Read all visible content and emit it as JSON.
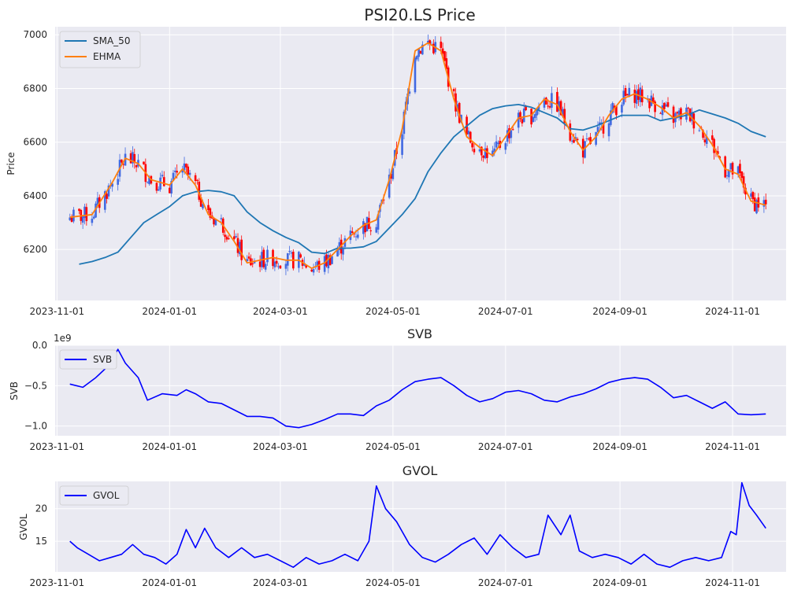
{
  "figure": {
    "background": "#ffffff",
    "axes_background": "#eaeaf2",
    "grid_color": "#ffffff"
  },
  "chart_data": [
    {
      "id": "price",
      "type": "candlestick",
      "title": "PSI20.LS Price",
      "xlabel": "",
      "ylabel": "Price",
      "ylim": [
        6010,
        7030
      ],
      "xlim": [
        "2023-10-31",
        "2024-11-30"
      ],
      "y_ticks": [
        "6200",
        "6400",
        "6600",
        "6800",
        "7000"
      ],
      "x_ticks": [
        "2023-11-01",
        "2024-01-01",
        "2024-03-01",
        "2024-05-01",
        "2024-07-01",
        "2024-09-01",
        "2024-11-01"
      ],
      "legend": {
        "position": "upper left",
        "entries": [
          "SMA_50",
          "EHMA"
        ]
      },
      "colors": {
        "SMA_50": "#1f77b4",
        "EHMA": "#ff7f0e",
        "up": "#4169e1",
        "down": "#ff0000"
      },
      "series": [
        {
          "name": "SMA_50",
          "x": [
            "2023-11-13",
            "2023-11-20",
            "2023-11-27",
            "2023-12-04",
            "2023-12-11",
            "2023-12-18",
            "2023-12-25",
            "2024-01-01",
            "2024-01-08",
            "2024-01-15",
            "2024-01-22",
            "2024-01-29",
            "2024-02-05",
            "2024-02-12",
            "2024-02-19",
            "2024-02-26",
            "2024-03-04",
            "2024-03-11",
            "2024-03-18",
            "2024-03-25",
            "2024-04-01",
            "2024-04-08",
            "2024-04-15",
            "2024-04-22",
            "2024-04-29",
            "2024-05-06",
            "2024-05-13",
            "2024-05-20",
            "2024-05-27",
            "2024-06-03",
            "2024-06-10",
            "2024-06-17",
            "2024-06-24",
            "2024-07-01",
            "2024-07-08",
            "2024-07-15",
            "2024-07-22",
            "2024-07-29",
            "2024-08-05",
            "2024-08-12",
            "2024-08-19",
            "2024-08-26",
            "2024-09-02",
            "2024-09-09",
            "2024-09-16",
            "2024-09-23",
            "2024-09-30",
            "2024-10-07",
            "2024-10-14",
            "2024-10-21",
            "2024-10-28",
            "2024-11-04",
            "2024-11-11",
            "2024-11-19"
          ],
          "values": [
            6145,
            6155,
            6170,
            6190,
            6245,
            6300,
            6330,
            6360,
            6400,
            6415,
            6420,
            6415,
            6400,
            6340,
            6300,
            6270,
            6245,
            6225,
            6190,
            6185,
            6205,
            6205,
            6210,
            6230,
            6280,
            6330,
            6390,
            6490,
            6560,
            6620,
            6660,
            6700,
            6725,
            6735,
            6740,
            6730,
            6710,
            6690,
            6650,
            6645,
            6660,
            6680,
            6700,
            6700,
            6700,
            6680,
            6690,
            6700,
            6720,
            6705,
            6690,
            6670,
            6640,
            6620
          ]
        },
        {
          "name": "EHMA",
          "x": [
            "2023-11-08",
            "2023-11-20",
            "2023-12-01",
            "2023-12-08",
            "2023-12-15",
            "2023-12-22",
            "2024-01-01",
            "2024-01-08",
            "2024-01-15",
            "2024-01-22",
            "2024-01-29",
            "2024-02-05",
            "2024-02-12",
            "2024-02-19",
            "2024-02-26",
            "2024-03-04",
            "2024-03-11",
            "2024-03-18",
            "2024-03-25",
            "2024-04-01",
            "2024-04-08",
            "2024-04-15",
            "2024-04-22",
            "2024-04-29",
            "2024-05-06",
            "2024-05-13",
            "2024-05-20",
            "2024-05-27",
            "2024-06-03",
            "2024-06-10",
            "2024-06-17",
            "2024-06-24",
            "2024-07-01",
            "2024-07-08",
            "2024-07-15",
            "2024-07-22",
            "2024-07-29",
            "2024-08-05",
            "2024-08-12",
            "2024-08-19",
            "2024-08-26",
            "2024-09-02",
            "2024-09-09",
            "2024-09-16",
            "2024-09-23",
            "2024-09-30",
            "2024-10-07",
            "2024-10-14",
            "2024-10-21",
            "2024-10-28",
            "2024-11-04",
            "2024-11-11",
            "2024-11-19"
          ],
          "values": [
            6320,
            6330,
            6450,
            6540,
            6520,
            6460,
            6440,
            6500,
            6440,
            6330,
            6300,
            6230,
            6150,
            6160,
            6170,
            6160,
            6160,
            6130,
            6150,
            6200,
            6250,
            6290,
            6310,
            6460,
            6650,
            6940,
            6970,
            6940,
            6760,
            6620,
            6580,
            6550,
            6620,
            6690,
            6700,
            6760,
            6740,
            6640,
            6570,
            6620,
            6700,
            6760,
            6780,
            6760,
            6730,
            6690,
            6710,
            6660,
            6590,
            6500,
            6480,
            6380,
            6365
          ]
        }
      ],
      "candles_approx": "daily OHLC bars, blue = up day, red = down day, closes follow EHMA closely"
    },
    {
      "id": "svb",
      "type": "line",
      "title": "SVB",
      "ylabel": "SVB",
      "offset_label": "1e9",
      "ylim": [
        -1120000000.0,
        0.0
      ],
      "xlim": [
        "2023-10-31",
        "2024-11-30"
      ],
      "y_ticks": [
        "0.0",
        "−0.5",
        "−1.0"
      ],
      "x_ticks": [
        "2023-11-01",
        "2024-01-01",
        "2024-03-01",
        "2024-05-01",
        "2024-07-01",
        "2024-09-01",
        "2024-11-01"
      ],
      "legend": {
        "position": "upper left",
        "entries": [
          "SVB"
        ]
      },
      "colors": {
        "SVB": "#0000ff"
      },
      "series": [
        {
          "name": "SVB",
          "x": [
            "2023-11-08",
            "2023-11-15",
            "2023-11-22",
            "2023-11-29",
            "2023-12-04",
            "2023-12-08",
            "2023-12-15",
            "2023-12-20",
            "2023-12-28",
            "2024-01-05",
            "2024-01-10",
            "2024-01-15",
            "2024-01-22",
            "2024-01-29",
            "2024-02-05",
            "2024-02-12",
            "2024-02-19",
            "2024-02-26",
            "2024-03-04",
            "2024-03-11",
            "2024-03-18",
            "2024-03-25",
            "2024-04-01",
            "2024-04-08",
            "2024-04-15",
            "2024-04-22",
            "2024-04-29",
            "2024-05-06",
            "2024-05-13",
            "2024-05-20",
            "2024-05-27",
            "2024-06-03",
            "2024-06-10",
            "2024-06-17",
            "2024-06-24",
            "2024-07-01",
            "2024-07-08",
            "2024-07-15",
            "2024-07-22",
            "2024-07-29",
            "2024-08-05",
            "2024-08-12",
            "2024-08-19",
            "2024-08-26",
            "2024-09-02",
            "2024-09-09",
            "2024-09-16",
            "2024-09-23",
            "2024-09-30",
            "2024-10-07",
            "2024-10-14",
            "2024-10-21",
            "2024-10-28",
            "2024-11-04",
            "2024-11-11",
            "2024-11-19"
          ],
          "values": [
            -0.48,
            -0.52,
            -0.4,
            -0.25,
            -0.05,
            -0.22,
            -0.4,
            -0.68,
            -0.6,
            -0.62,
            -0.55,
            -0.6,
            -0.7,
            -0.72,
            -0.8,
            -0.88,
            -0.88,
            -0.9,
            -1.0,
            -1.02,
            -0.98,
            -0.92,
            -0.85,
            -0.85,
            -0.87,
            -0.75,
            -0.68,
            -0.55,
            -0.45,
            -0.42,
            -0.4,
            -0.5,
            -0.62,
            -0.7,
            -0.66,
            -0.58,
            -0.56,
            -0.6,
            -0.68,
            -0.7,
            -0.64,
            -0.6,
            -0.54,
            -0.46,
            -0.42,
            -0.4,
            -0.42,
            -0.52,
            -0.65,
            -0.62,
            -0.7,
            -0.78,
            -0.7,
            -0.85,
            -0.86,
            -0.85
          ]
        }
      ]
    },
    {
      "id": "gvol",
      "type": "line",
      "title": "GVOL",
      "ylabel": "GVOL",
      "ylim": [
        10.3,
        24.2
      ],
      "xlim": [
        "2023-10-31",
        "2024-11-30"
      ],
      "y_ticks": [
        "15",
        "20"
      ],
      "x_ticks": [
        "2023-11-01",
        "2024-01-01",
        "2024-03-01",
        "2024-05-01",
        "2024-07-01",
        "2024-09-01",
        "2024-11-01"
      ],
      "legend": {
        "position": "upper left",
        "entries": [
          "GVOL"
        ]
      },
      "colors": {
        "GVOL": "#0000ff"
      },
      "series": [
        {
          "name": "GVOL",
          "x": [
            "2023-11-08",
            "2023-11-12",
            "2023-11-18",
            "2023-11-24",
            "2023-11-30",
            "2023-12-06",
            "2023-12-12",
            "2023-12-18",
            "2023-12-24",
            "2023-12-30",
            "2024-01-05",
            "2024-01-10",
            "2024-01-15",
            "2024-01-20",
            "2024-01-26",
            "2024-02-02",
            "2024-02-09",
            "2024-02-16",
            "2024-02-23",
            "2024-03-01",
            "2024-03-08",
            "2024-03-15",
            "2024-03-22",
            "2024-03-29",
            "2024-04-05",
            "2024-04-12",
            "2024-04-18",
            "2024-04-22",
            "2024-04-27",
            "2024-05-03",
            "2024-05-10",
            "2024-05-17",
            "2024-05-24",
            "2024-05-31",
            "2024-06-07",
            "2024-06-14",
            "2024-06-21",
            "2024-06-28",
            "2024-07-05",
            "2024-07-12",
            "2024-07-19",
            "2024-07-24",
            "2024-07-31",
            "2024-08-05",
            "2024-08-10",
            "2024-08-17",
            "2024-08-24",
            "2024-08-31",
            "2024-09-07",
            "2024-09-14",
            "2024-09-21",
            "2024-09-28",
            "2024-10-05",
            "2024-10-12",
            "2024-10-19",
            "2024-10-26",
            "2024-10-31",
            "2024-11-03",
            "2024-11-06",
            "2024-11-10",
            "2024-11-14",
            "2024-11-19"
          ],
          "values": [
            15.0,
            14.0,
            13.0,
            12.0,
            12.5,
            13.0,
            14.5,
            13.0,
            12.5,
            11.5,
            13.0,
            16.8,
            14.0,
            17.0,
            14.0,
            12.5,
            14.0,
            12.5,
            13.0,
            12.0,
            11.0,
            12.5,
            11.5,
            12.0,
            13.0,
            12.0,
            15.0,
            23.5,
            20.0,
            18.0,
            14.5,
            12.5,
            11.8,
            13.0,
            14.5,
            15.5,
            13.0,
            16.0,
            14.0,
            12.5,
            13.0,
            19.0,
            16.0,
            19.0,
            13.5,
            12.5,
            13.0,
            12.5,
            11.5,
            13.0,
            11.5,
            11.0,
            12.0,
            12.5,
            12.0,
            12.5,
            16.5,
            16.0,
            24.0,
            20.5,
            19.0,
            17.0
          ]
        }
      ]
    }
  ]
}
